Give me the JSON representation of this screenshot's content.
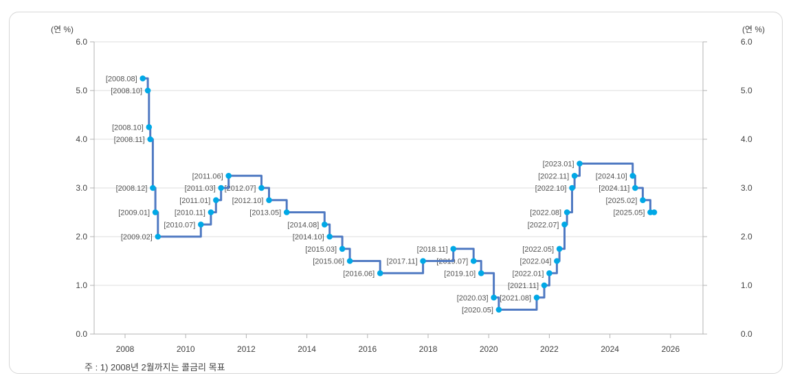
{
  "chart_data": {
    "type": "line",
    "subtype": "step",
    "title": "",
    "unit_left": "(연 %)",
    "unit_right": "(연 %)",
    "footnote": "주 : 1) 2008년 2월까지는 콜금리 목표",
    "grid": "horizontal",
    "legend_position": "none",
    "xlabel": "",
    "ylabel": "",
    "ylim": [
      0.0,
      6.0
    ],
    "y_tick_step": 1.0,
    "y_ticks": [
      "0.0",
      "1.0",
      "2.0",
      "3.0",
      "4.0",
      "5.0",
      "6.0"
    ],
    "x_ticks": [
      2008,
      2010,
      2012,
      2014,
      2016,
      2018,
      2020,
      2022,
      2024,
      2026
    ],
    "series": [
      {
        "points": [
          {
            "label": "[2008.08]",
            "x": 2008.583,
            "value": 5.25
          },
          {
            "label": "[2008.10]",
            "x": 2008.75,
            "value": 5.0
          },
          {
            "label": "[2008.10]",
            "x": 2008.79,
            "value": 4.25
          },
          {
            "label": "[2008.11]",
            "x": 2008.833,
            "value": 4.0
          },
          {
            "label": "[2008.12]",
            "x": 2008.917,
            "value": 3.0
          },
          {
            "label": "[2009.01]",
            "x": 2009.0,
            "value": 2.5
          },
          {
            "label": "[2009.02]",
            "x": 2009.083,
            "value": 2.0
          },
          {
            "label": "[2010.07]",
            "x": 2010.5,
            "value": 2.25
          },
          {
            "label": "[2010.11]",
            "x": 2010.833,
            "value": 2.5
          },
          {
            "label": "[2011.01]",
            "x": 2011.0,
            "value": 2.75
          },
          {
            "label": "[2011.03]",
            "x": 2011.167,
            "value": 3.0
          },
          {
            "label": "[2011.06]",
            "x": 2011.417,
            "value": 3.25
          },
          {
            "label": "[2012.07]",
            "x": 2012.5,
            "value": 3.0
          },
          {
            "label": "[2012.10]",
            "x": 2012.75,
            "value": 2.75
          },
          {
            "label": "[2013.05]",
            "x": 2013.333,
            "value": 2.5
          },
          {
            "label": "[2014.08]",
            "x": 2014.583,
            "value": 2.25
          },
          {
            "label": "[2014.10]",
            "x": 2014.75,
            "value": 2.0
          },
          {
            "label": "[2015.03]",
            "x": 2015.167,
            "value": 1.75
          },
          {
            "label": "[2015.06]",
            "x": 2015.417,
            "value": 1.5
          },
          {
            "label": "[2016.06]",
            "x": 2016.417,
            "value": 1.25
          },
          {
            "label": "[2017.11]",
            "x": 2017.833,
            "value": 1.5
          },
          {
            "label": "[2018.11]",
            "x": 2018.833,
            "value": 1.75
          },
          {
            "label": "[2019.07]",
            "x": 2019.5,
            "value": 1.5
          },
          {
            "label": "[2019.10]",
            "x": 2019.75,
            "value": 1.25
          },
          {
            "label": "[2020.03]",
            "x": 2020.167,
            "value": 0.75
          },
          {
            "label": "[2020.05]",
            "x": 2020.333,
            "value": 0.5
          },
          {
            "label": "[2021.08]",
            "x": 2021.583,
            "value": 0.75
          },
          {
            "label": "[2021.11]",
            "x": 2021.833,
            "value": 1.0
          },
          {
            "label": "[2022.01]",
            "x": 2022.0,
            "value": 1.25
          },
          {
            "label": "[2022.04]",
            "x": 2022.25,
            "value": 1.5
          },
          {
            "label": "[2022.05]",
            "x": 2022.333,
            "value": 1.75
          },
          {
            "label": "[2022.07]",
            "x": 2022.5,
            "value": 2.25
          },
          {
            "label": "[2022.08]",
            "x": 2022.583,
            "value": 2.5
          },
          {
            "label": "[2022.10]",
            "x": 2022.75,
            "value": 3.0
          },
          {
            "label": "[2022.11]",
            "x": 2022.833,
            "value": 3.25
          },
          {
            "label": "[2023.01]",
            "x": 2023.0,
            "value": 3.5
          },
          {
            "label": "[2024.10]",
            "x": 2024.75,
            "value": 3.25
          },
          {
            "label": "[2024.11]",
            "x": 2024.833,
            "value": 3.0
          },
          {
            "label": "[2025.02]",
            "x": 2025.083,
            "value": 2.75
          },
          {
            "label": "[2025.05]",
            "x": 2025.333,
            "value": 2.5
          }
        ],
        "extend_to_x": 2025.46,
        "end_marker": true
      }
    ],
    "colors": {
      "line": "#4f79c2",
      "marker": "#00a8e6",
      "grid": "#dcdcdc",
      "axis": "#b3b3b3",
      "tick_text": "#404040",
      "point_label_text": "#525252"
    }
  }
}
